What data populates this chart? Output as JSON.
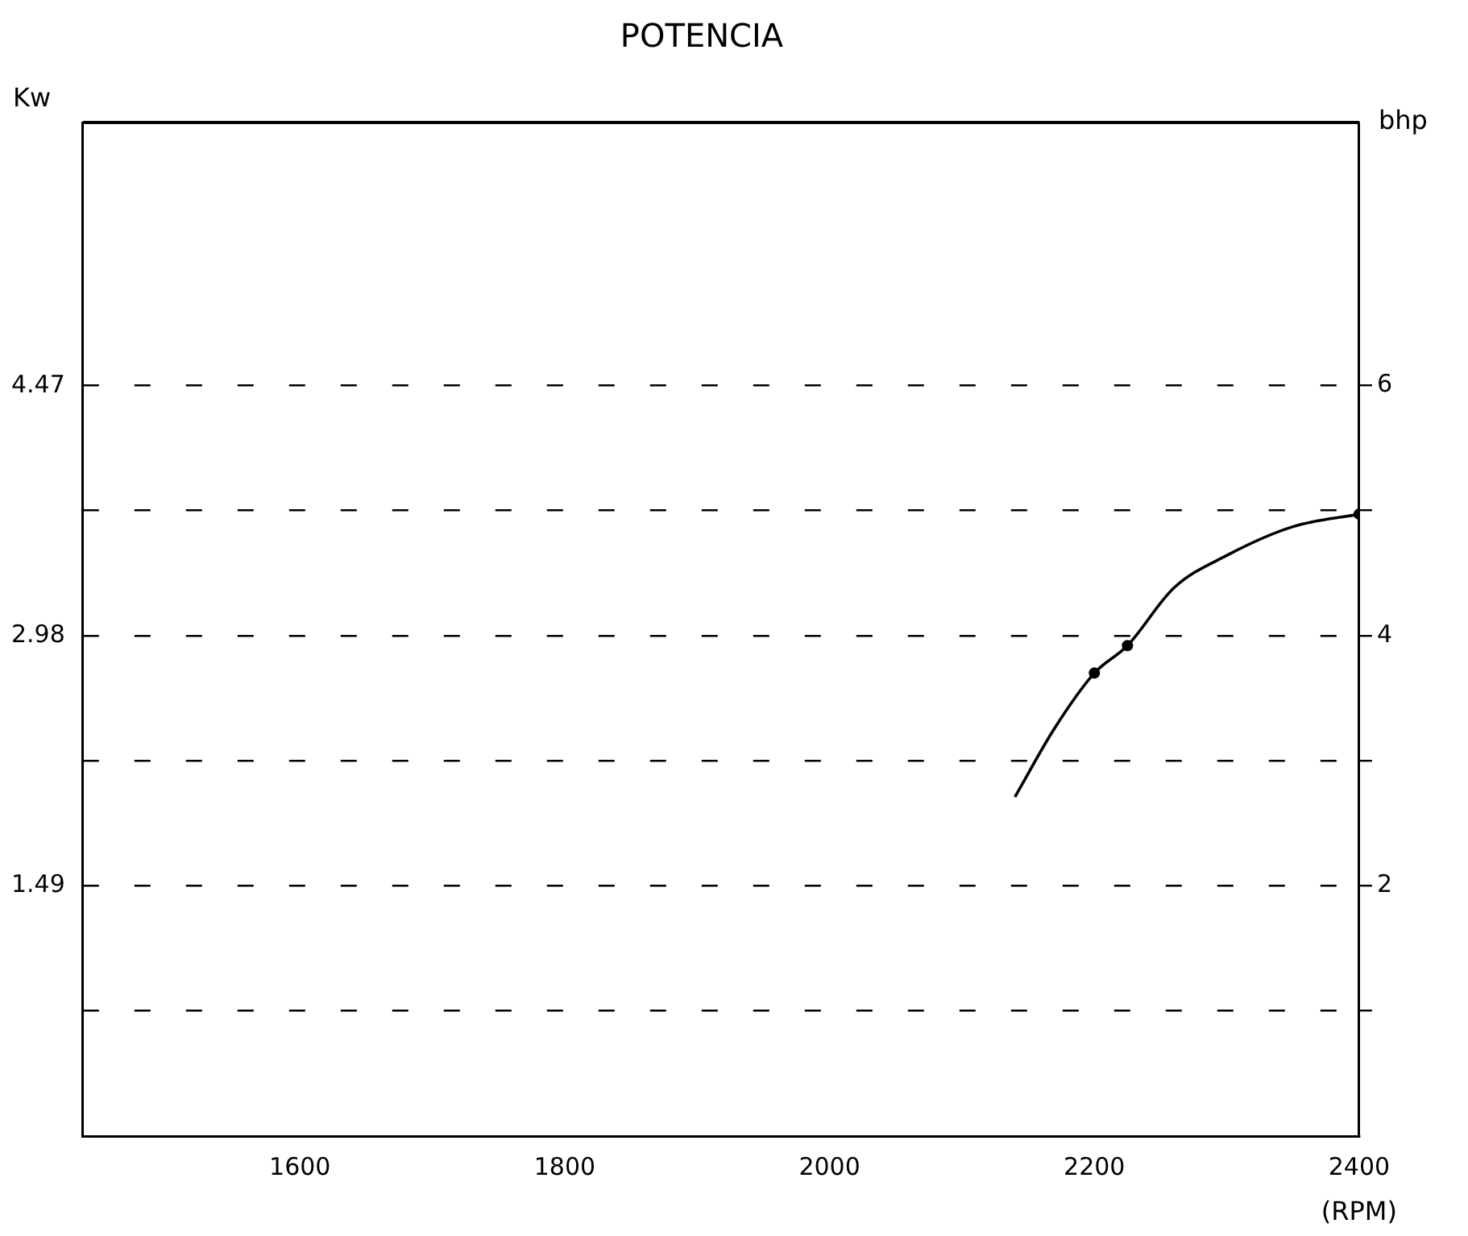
{
  "chart_data": {
    "type": "line",
    "title": "POTENCIA",
    "xlabel": "(RPM)",
    "ylabel": "Kw",
    "y2label": "bhp",
    "xlim": [
      1436,
      2400
    ],
    "xticks": [
      1600,
      1800,
      2000,
      2200,
      2400
    ],
    "ylim": [
      0,
      6.04
    ],
    "yticks": [
      1.49,
      2.98,
      4.47
    ],
    "y2lim": [
      0,
      8.1
    ],
    "y2ticks": [
      {
        "value": 1,
        "label": null
      },
      2,
      {
        "value": 3,
        "label": null
      },
      4,
      {
        "value": 5,
        "label": null
      },
      6
    ],
    "grid": "y",
    "series": [
      {
        "axis": "y2",
        "color": "#000000",
        "marker": "none",
        "x": [
          2140,
          2170,
          2200,
          2225,
          2260,
          2300,
          2350,
          2400
        ],
        "values": [
          2.71,
          3.26,
          3.7,
          3.92,
          4.38,
          4.64,
          4.87,
          4.97
        ]
      },
      {
        "type": "scatter",
        "axis": "y2",
        "color": "#000000",
        "marker": "circle",
        "x": [
          2200,
          2225,
          2400
        ],
        "values": [
          3.7,
          3.92,
          4.97
        ]
      }
    ]
  }
}
